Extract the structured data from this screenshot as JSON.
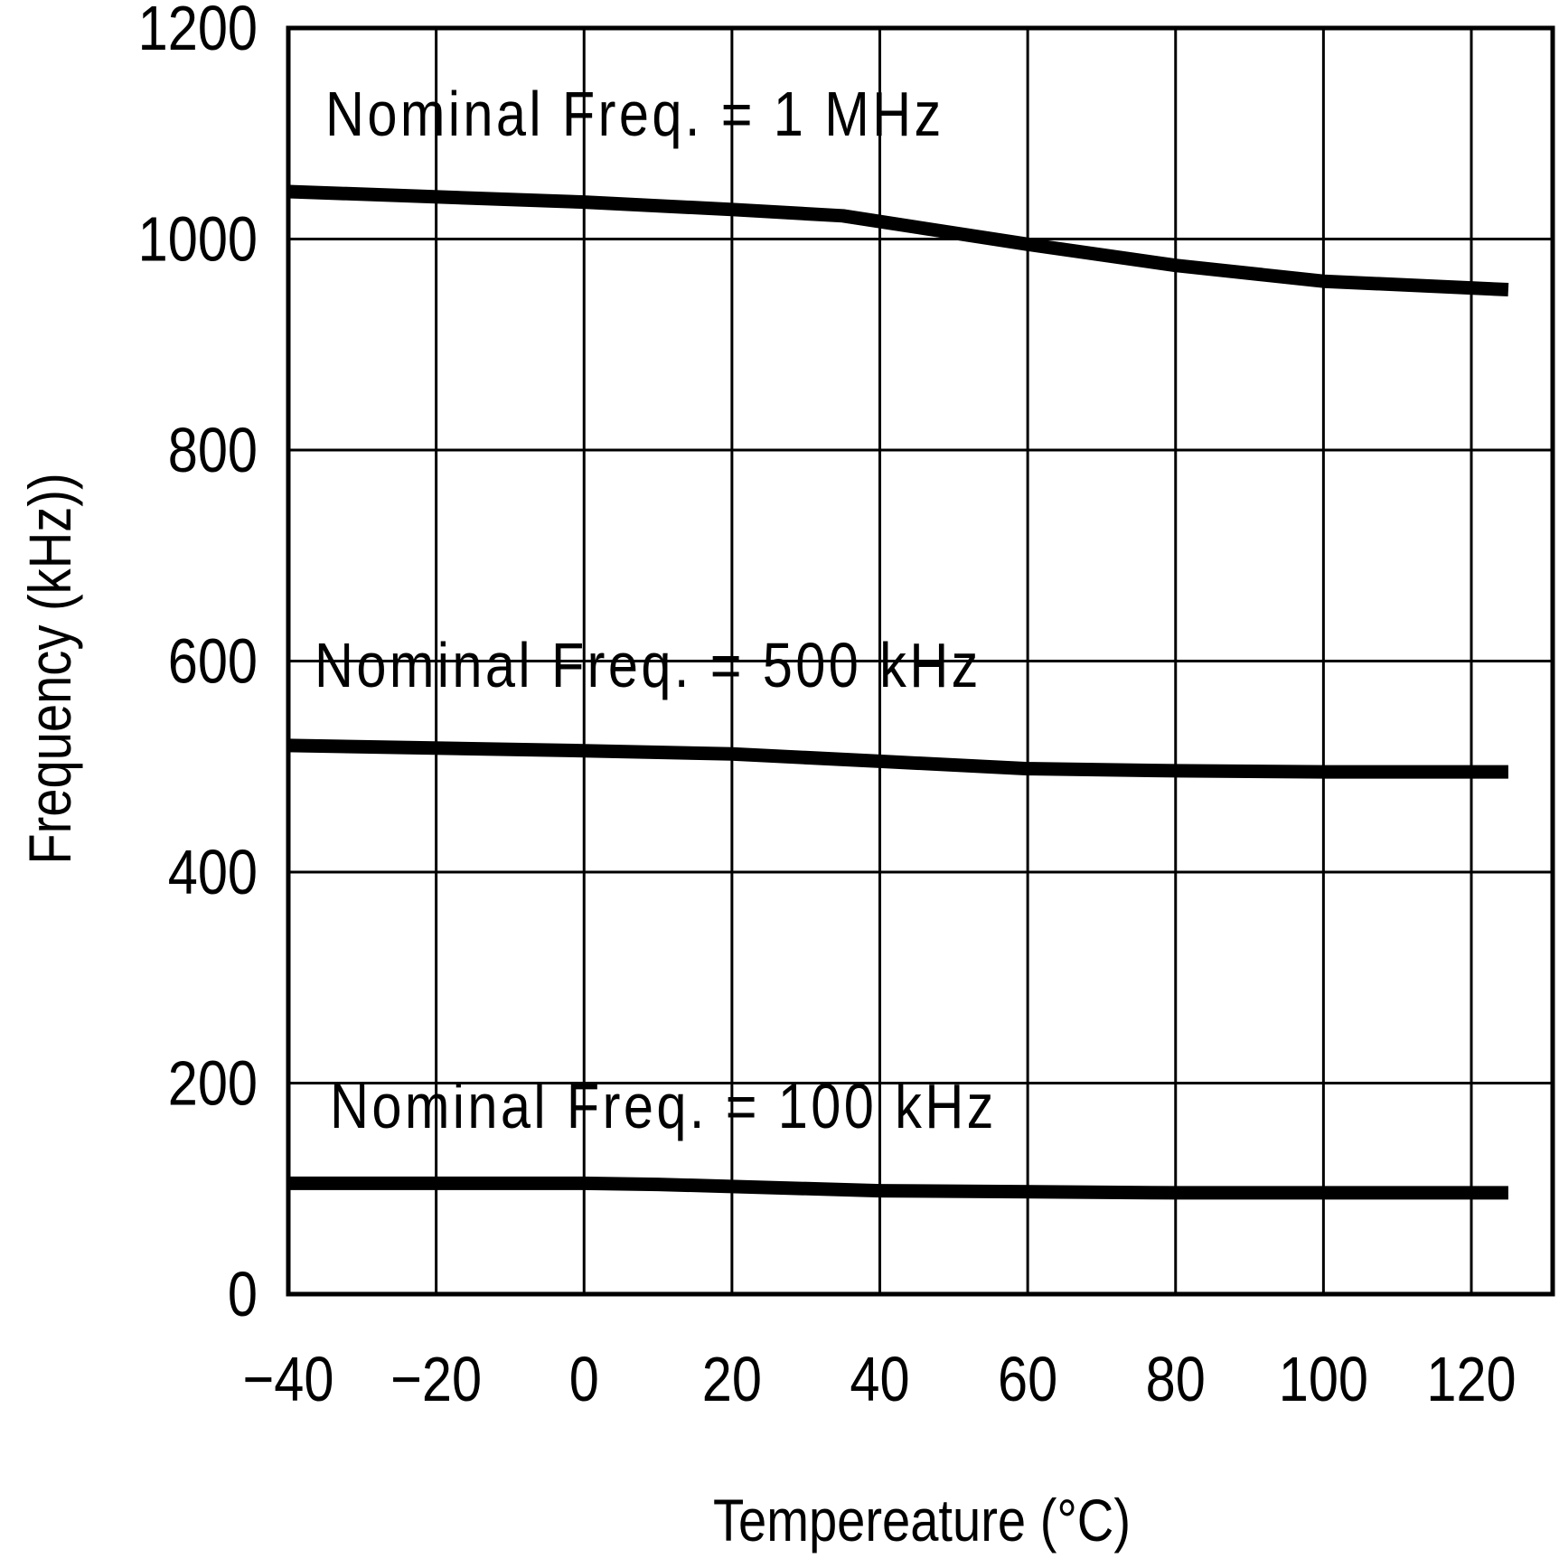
{
  "chart_data": {
    "type": "line",
    "title": "",
    "xlabel": "Tempereature (°C)",
    "ylabel": "Frequency (kHz))",
    "xlim": [
      -40,
      131
    ],
    "ylim": [
      0,
      1200
    ],
    "grid": true,
    "x_ticks": [
      -40,
      -20,
      0,
      20,
      40,
      60,
      80,
      100,
      120
    ],
    "y_ticks": [
      0,
      200,
      400,
      600,
      800,
      1000,
      1200
    ],
    "line_color": "#000000",
    "series": [
      {
        "name": "Nominal Freq. = 1 MHz",
        "x": [
          -40,
          0,
          20,
          35,
          60,
          80,
          100,
          125
        ],
        "y": [
          1045,
          1035,
          1028,
          1022,
          995,
          975,
          960,
          952
        ]
      },
      {
        "name": "Nominal Freq. = 500 kHz",
        "x": [
          -40,
          0,
          20,
          40,
          60,
          80,
          100,
          125
        ],
        "y": [
          520,
          515,
          512,
          505,
          498,
          496,
          495,
          495
        ]
      },
      {
        "name": "Nominal Freq. = 100 kHz",
        "x": [
          -40,
          0,
          10,
          40,
          80,
          125
        ],
        "y": [
          105,
          105,
          104,
          98,
          96,
          96
        ]
      }
    ]
  }
}
